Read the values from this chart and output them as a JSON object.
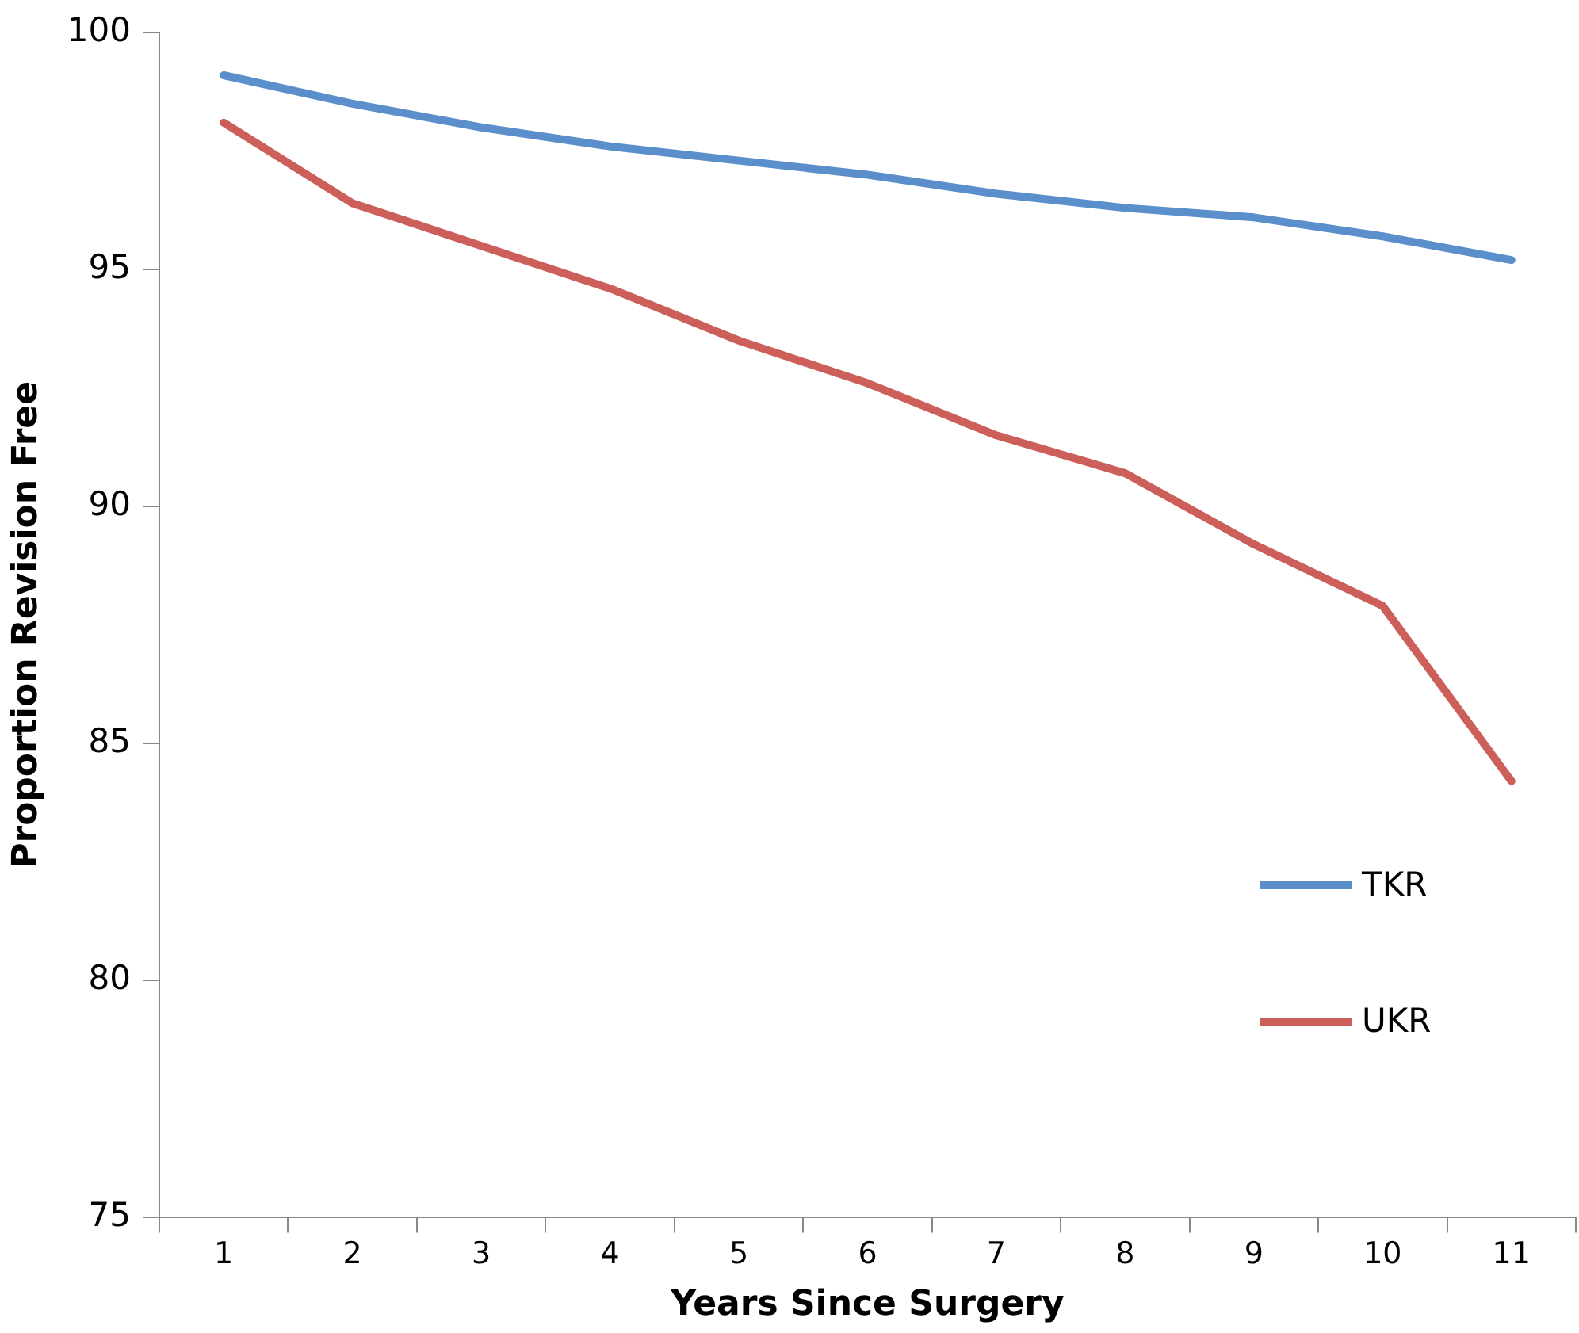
{
  "chart_data": {
    "type": "line",
    "xlabel": "Years Since Surgery",
    "ylabel": "Proportion Revision Free",
    "categories": [
      "1",
      "2",
      "3",
      "4",
      "5",
      "6",
      "7",
      "8",
      "9",
      "10",
      "11"
    ],
    "series": [
      {
        "name": "TKR",
        "color": "#5b8fcb",
        "values": [
          99.1,
          98.5,
          98.0,
          97.6,
          97.3,
          97.0,
          96.6,
          96.3,
          96.1,
          95.7,
          95.2
        ]
      },
      {
        "name": "UKR",
        "color": "#cc5f5a",
        "values": [
          98.1,
          96.4,
          95.5,
          94.6,
          93.5,
          92.6,
          91.5,
          90.7,
          89.2,
          87.9,
          84.2
        ]
      }
    ],
    "ylim": [
      75,
      100
    ],
    "yticks": [
      75,
      80,
      85,
      90,
      95,
      100
    ],
    "grid": false,
    "legend": "bottom right",
    "marker": "none",
    "line_style": "solid"
  }
}
